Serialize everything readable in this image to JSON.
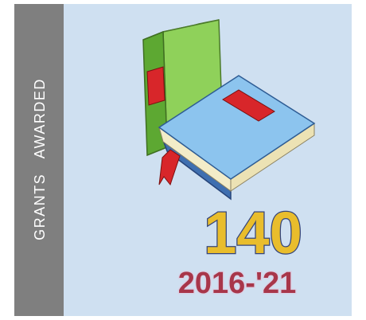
{
  "sidebar": {
    "label": "GRANTS   AWARDED"
  },
  "stat": {
    "value": "140",
    "period": "2016-'21"
  }
}
